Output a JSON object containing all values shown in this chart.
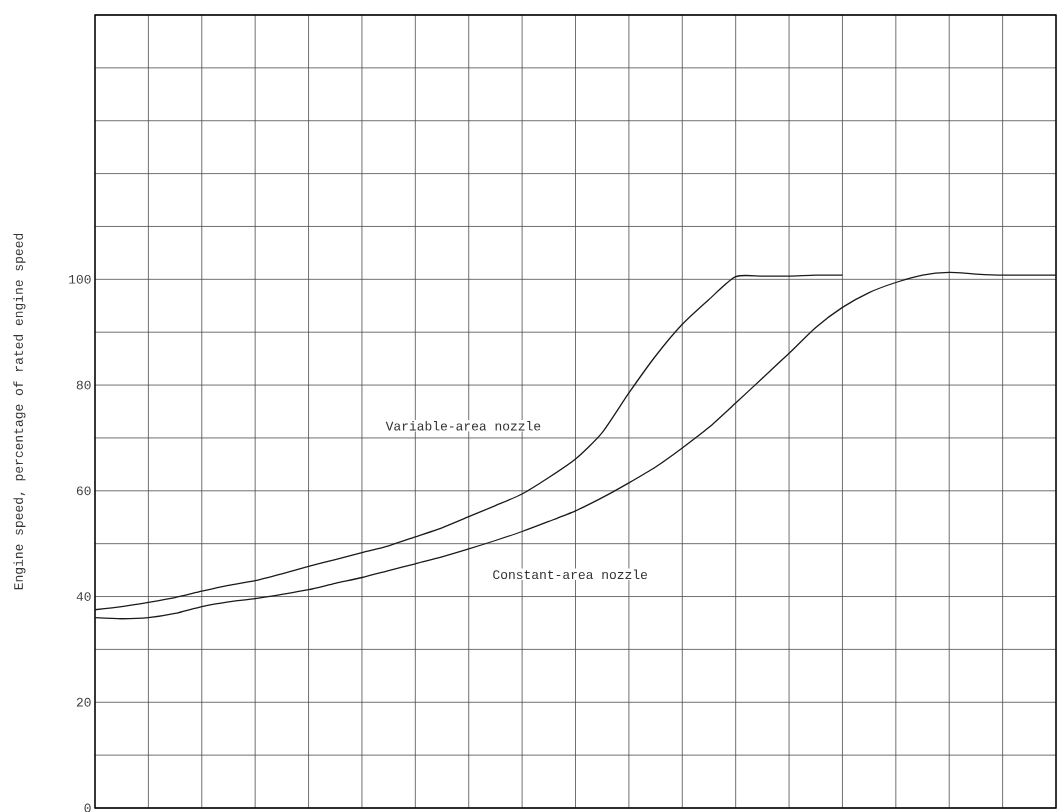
{
  "chart_data": {
    "type": "line",
    "ylabel": "Engine speed, percentage of rated engine speed",
    "categories": [
      null,
      null,
      null,
      null,
      null,
      null,
      null,
      null,
      null,
      null,
      null,
      null,
      null,
      null,
      null,
      null,
      null,
      null,
      null,
      null,
      null,
      null,
      null,
      null,
      null,
      null,
      null,
      null,
      null,
      null,
      null,
      null,
      null,
      null,
      null,
      null,
      null
    ],
    "series": [
      {
        "color": "#1a1a1a",
        "values": [
          37.5,
          38.1,
          38.9,
          39.8,
          41,
          42.1,
          43,
          44.3,
          45.7,
          47,
          48.3,
          49.6,
          51.3,
          53,
          55.1,
          57.2,
          59.4,
          62.5,
          66,
          71,
          78.5,
          85.5,
          91.5,
          96.2,
          100.5,
          100.6,
          100.6,
          100.8,
          100.8,
          null,
          null,
          null,
          null,
          null,
          null,
          null,
          null
        ]
      },
      {
        "color": "#1a1a1a",
        "values": [
          36,
          35.8,
          36,
          36.8,
          38.1,
          39,
          39.6,
          40.4,
          41.3,
          42.5,
          43.6,
          44.9,
          46.2,
          47.5,
          49,
          50.6,
          52.3,
          54.2,
          56.2,
          58.7,
          61.5,
          64.5,
          68.1,
          72,
          76.6,
          81.3,
          86,
          90.9,
          94.7,
          97.5,
          99.4,
          100.8,
          101.3,
          101,
          100.8,
          100.8,
          100.8
        ]
      }
    ],
    "ylim": [
      0,
      150
    ],
    "yticks": [
      0,
      {
        "value": 10,
        "label": null
      },
      20,
      {
        "value": 30,
        "label": null
      },
      40,
      {
        "value": 50,
        "label": null
      },
      60,
      {
        "value": 70,
        "label": null
      },
      80,
      {
        "value": 90,
        "label": null
      },
      100,
      {
        "value": 110,
        "label": null
      },
      {
        "value": 120,
        "label": null
      },
      {
        "value": 130,
        "label": null
      },
      {
        "value": 140,
        "label": null
      },
      {
        "value": 150,
        "label": null
      }
    ],
    "annotations": [
      "Variable-area nozzle",
      "Constant-area nozzle"
    ],
    "grid": true,
    "tick_labels": "y",
    "marker": "none",
    "line_style": "solid"
  }
}
